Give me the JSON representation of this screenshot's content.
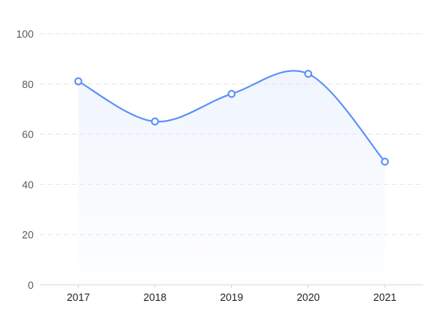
{
  "chart_data": {
    "type": "line",
    "title": "",
    "xlabel": "",
    "ylabel": "",
    "categories": [
      "2017",
      "2018",
      "2019",
      "2020",
      "2021"
    ],
    "series": [
      {
        "values": [
          81,
          65,
          76,
          84,
          49
        ]
      }
    ],
    "ylim": [
      0,
      100
    ],
    "yticks": [
      0,
      20,
      40,
      60,
      80,
      100
    ],
    "grid": true,
    "smooth": true,
    "area_fill": true,
    "colors": {
      "line": "#5b8ff9",
      "area": "#dce7fb"
    }
  }
}
